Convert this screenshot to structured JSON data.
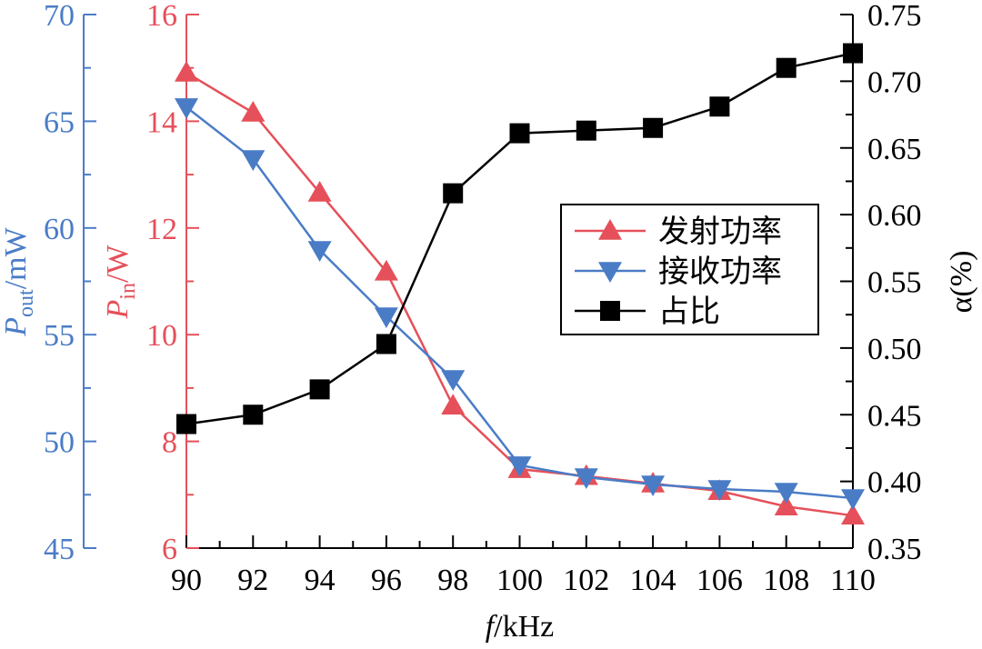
{
  "chart_data": {
    "type": "line",
    "x": [
      90,
      92,
      94,
      96,
      98,
      100,
      102,
      104,
      106,
      108,
      110
    ],
    "xlabel": {
      "main": "f",
      "unit": "/kHz"
    },
    "xlim": [
      90,
      110
    ],
    "xticks": [
      90,
      92,
      94,
      96,
      98,
      100,
      102,
      104,
      106,
      108,
      110
    ],
    "axes": {
      "pin": {
        "label_main": "P",
        "label_sub": "in",
        "label_unit": "/W",
        "lim": [
          6,
          16
        ],
        "ticks": [
          6,
          8,
          10,
          12,
          14,
          16
        ],
        "color": "#e5505a",
        "position": "left-inner"
      },
      "pout": {
        "label_main": "P",
        "label_sub": "out",
        "label_unit": "/mW",
        "lim": [
          45,
          70
        ],
        "ticks": [
          45,
          50,
          55,
          60,
          65,
          70
        ],
        "color": "#4a7cc6",
        "position": "left-outer"
      },
      "alpha": {
        "label": "α(%)",
        "lim": [
          0.35,
          0.75
        ],
        "ticks": [
          "0.35",
          "0.40",
          "0.45",
          "0.50",
          "0.55",
          "0.60",
          "0.65",
          "0.70",
          "0.75"
        ],
        "color": "#000000",
        "position": "right"
      }
    },
    "series": [
      {
        "name": "发射功率",
        "axis": "pin",
        "marker": "triangle-up",
        "color": "#e5505a",
        "values": [
          14.91,
          14.16,
          12.66,
          11.18,
          8.67,
          7.48,
          7.35,
          7.21,
          7.07,
          6.78,
          6.61
        ]
      },
      {
        "name": "接收功率",
        "axis": "pout",
        "marker": "triangle-down",
        "color": "#4a7cc6",
        "values": [
          65.66,
          63.23,
          58.97,
          55.86,
          52.92,
          48.88,
          48.32,
          47.98,
          47.77,
          47.64,
          47.34
        ]
      },
      {
        "name": "占比",
        "axis": "alpha",
        "marker": "square",
        "color": "#000000",
        "values": [
          0.443,
          0.45,
          0.469,
          0.503,
          0.616,
          0.661,
          0.663,
          0.665,
          0.681,
          0.71,
          0.721
        ]
      }
    ],
    "legend": "center-right",
    "grid": false
  }
}
